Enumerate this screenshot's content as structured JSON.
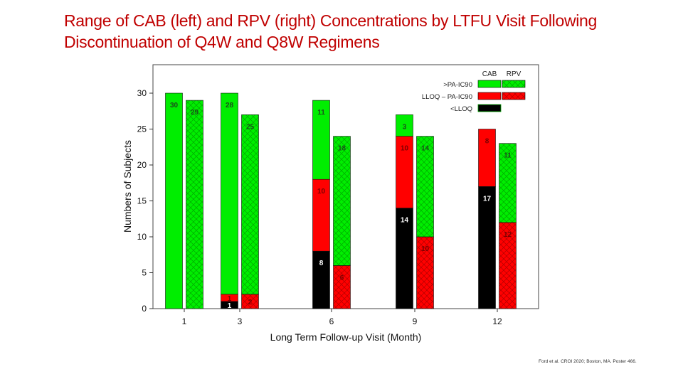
{
  "title": {
    "line1": "Range of CAB (left) and RPV (right) Concentrations by LTFU Visit Following",
    "line2": "Discontinuation of Q4W and Q8W Regimens"
  },
  "citation": "Ford et al. CROI 2020; Boston, MA. Poster 466.",
  "colors": {
    "above": "#00ee00",
    "between": "#ff0000",
    "below": "#000000",
    "title": "#c00000"
  },
  "chart_data": {
    "type": "bar",
    "subtype": "stacked-grouped",
    "xlabel": "Long Term Follow-up Visit (Month)",
    "ylabel": "Numbers of Subjects",
    "ylim": [
      0,
      33
    ],
    "yticks": [
      0,
      5,
      10,
      15,
      20,
      25,
      30
    ],
    "categories": [
      "1",
      "3",
      "6",
      "9",
      "12"
    ],
    "legend": {
      "col_headers": [
        "CAB",
        "RPV"
      ],
      "entries": [
        ">PA-IC90",
        "LLOQ – PA-IC90",
        "<LLOQ"
      ],
      "position": "top-right"
    },
    "groups": [
      {
        "category": "1",
        "CAB": {
          "below": 0,
          "between": 0,
          "above": 30
        },
        "RPV": {
          "below": 0,
          "between": 0,
          "above": 29
        },
        "labels": {
          "CAB": {
            "above": "30"
          },
          "RPV": {
            "above": "29"
          }
        }
      },
      {
        "category": "3",
        "CAB": {
          "below": 1,
          "between": 1,
          "above": 28
        },
        "RPV": {
          "below": 0,
          "between": 2,
          "above": 25
        },
        "labels": {
          "CAB": {
            "below": "1",
            "between": "1",
            "above": "28"
          },
          "RPV": {
            "between": "2",
            "above": "25"
          }
        }
      },
      {
        "category": "6",
        "CAB": {
          "below": 8,
          "between": 10,
          "above": 11
        },
        "RPV": {
          "below": 0,
          "between": 6,
          "above": 18
        },
        "labels": {
          "CAB": {
            "below": "8",
            "between": "10",
            "above": "11"
          },
          "RPV": {
            "between": "6",
            "above": "18"
          }
        }
      },
      {
        "category": "9",
        "CAB": {
          "below": 14,
          "between": 10,
          "above": 3
        },
        "RPV": {
          "below": 0,
          "between": 10,
          "above": 14
        },
        "labels": {
          "CAB": {
            "below": "14",
            "between": "10",
            "above": "3"
          },
          "RPV": {
            "between": "10",
            "above": "14"
          }
        }
      },
      {
        "category": "12",
        "CAB": {
          "below": 17,
          "between": 8,
          "above": 0
        },
        "RPV": {
          "below": 0,
          "between": 12,
          "above": 11
        },
        "labels": {
          "CAB": {
            "below": "17",
            "between": "8"
          },
          "RPV": {
            "between": "12",
            "above": "11"
          }
        }
      }
    ]
  }
}
